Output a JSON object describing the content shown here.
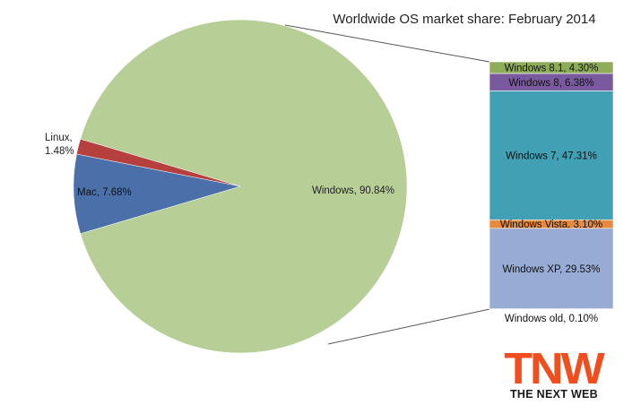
{
  "chart_data": {
    "type": "pie",
    "title": "Worldwide OS market share: February 2014",
    "slices": [
      {
        "label": "Windows",
        "value": 90.84,
        "color": "#b7cf96"
      },
      {
        "label": "Linux",
        "value": 1.48,
        "color": "#b5403e"
      },
      {
        "label": "Mac",
        "value": 7.68,
        "color": "#4b6fa8"
      }
    ],
    "slice_labels": {
      "windows": "Windows, 90.84%",
      "linux_line1": "Linux,",
      "linux_line2": "1.48%",
      "mac": "Mac, 7.68%"
    },
    "breakdown": {
      "of": "Windows",
      "segments": [
        {
          "label": "Windows 8.1, 4.30%",
          "value": 4.3,
          "color": "#8fac5a"
        },
        {
          "label": "Windows 8, 6.38%",
          "value": 6.38,
          "color": "#7a5a9e"
        },
        {
          "label": "Windows 7, 47.31%",
          "value": 47.31,
          "color": "#41a0b4"
        },
        {
          "label": "Windows Vista, 3.10%",
          "value": 3.1,
          "color": "#e58a3e"
        },
        {
          "label": "Windows XP, 29.53%",
          "value": 29.53,
          "color": "#98abd4"
        },
        {
          "label": "Windows old, 0.10%",
          "value": 0.1,
          "color": "#98abd4"
        }
      ]
    }
  },
  "logo": {
    "mark": "TNW",
    "wordmark": "THE NEXT WEB",
    "color": "#f04e1e"
  }
}
